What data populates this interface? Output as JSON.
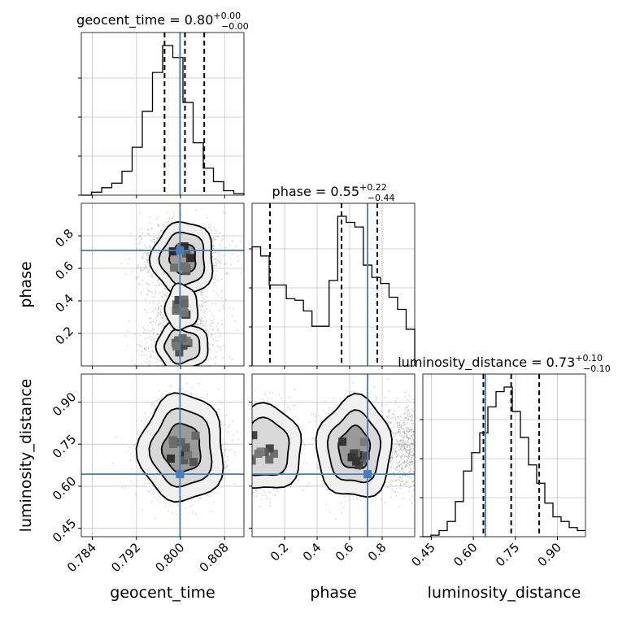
{
  "chart_data": {
    "type": "corner",
    "parameters": [
      {
        "name": "geocent_time",
        "label": "geocent_time",
        "title_main": "geocent_time = 0.80",
        "title_plus": "+0.00",
        "title_minus": "−0.00",
        "range": [
          0.782,
          0.8115
        ],
        "ticks": [
          0.784,
          0.792,
          0.8,
          0.808
        ],
        "tick_labels": [
          "0.784",
          "0.792",
          "0.800",
          "0.808"
        ],
        "truth": 0.7999,
        "quantiles": [
          0.7971,
          0.8008,
          0.8043
        ],
        "hist_counts": [
          0,
          0.02,
          0.05,
          0.08,
          0.16,
          0.32,
          0.56,
          0.82,
          1.0,
          0.92,
          0.62,
          0.35,
          0.18,
          0.09,
          0.03,
          0.01
        ]
      },
      {
        "name": "phase",
        "label": "phase",
        "title_main": "phase = 0.55",
        "title_plus": "+0.22",
        "title_minus": "−0.44",
        "range": [
          0.0,
          1.0
        ],
        "ticks": [
          0.2,
          0.4,
          0.6,
          0.8
        ],
        "tick_labels": [
          "0.2",
          "0.4",
          "0.6",
          "0.8"
        ],
        "truth": 0.71,
        "quantiles": [
          0.11,
          0.55,
          0.77
        ],
        "hist_counts": [
          0.78,
          0.72,
          0.53,
          0.53,
          0.44,
          0.43,
          0.36,
          0.26,
          0.26,
          0.56,
          0.98,
          0.94,
          0.91,
          0.66,
          0.58,
          0.54,
          0.45,
          0.37,
          0.24
        ]
      },
      {
        "name": "luminosity_distance",
        "label": "luminosity_distance",
        "title_main": "luminosity_distance = 0.73",
        "title_plus": "+0.10",
        "title_minus": "−0.10",
        "range": [
          0.42,
          1.0
        ],
        "ticks": [
          0.45,
          0.6,
          0.75,
          0.9
        ],
        "tick_labels": [
          "0.45",
          "0.60",
          "0.75",
          "0.90"
        ],
        "truth": 0.643,
        "quantiles": [
          0.636,
          0.735,
          0.835
        ],
        "hist_counts": [
          0,
          0.01,
          0.04,
          0.1,
          0.23,
          0.43,
          0.55,
          0.68,
          0.85,
          0.95,
          0.98,
          0.82,
          0.65,
          0.47,
          0.35,
          0.22,
          0.13,
          0.1,
          0.06,
          0.04
        ]
      }
    ],
    "grid": true,
    "truth_color": "#4a7db5",
    "hist_color": "#000000",
    "density_color": "#000000"
  }
}
